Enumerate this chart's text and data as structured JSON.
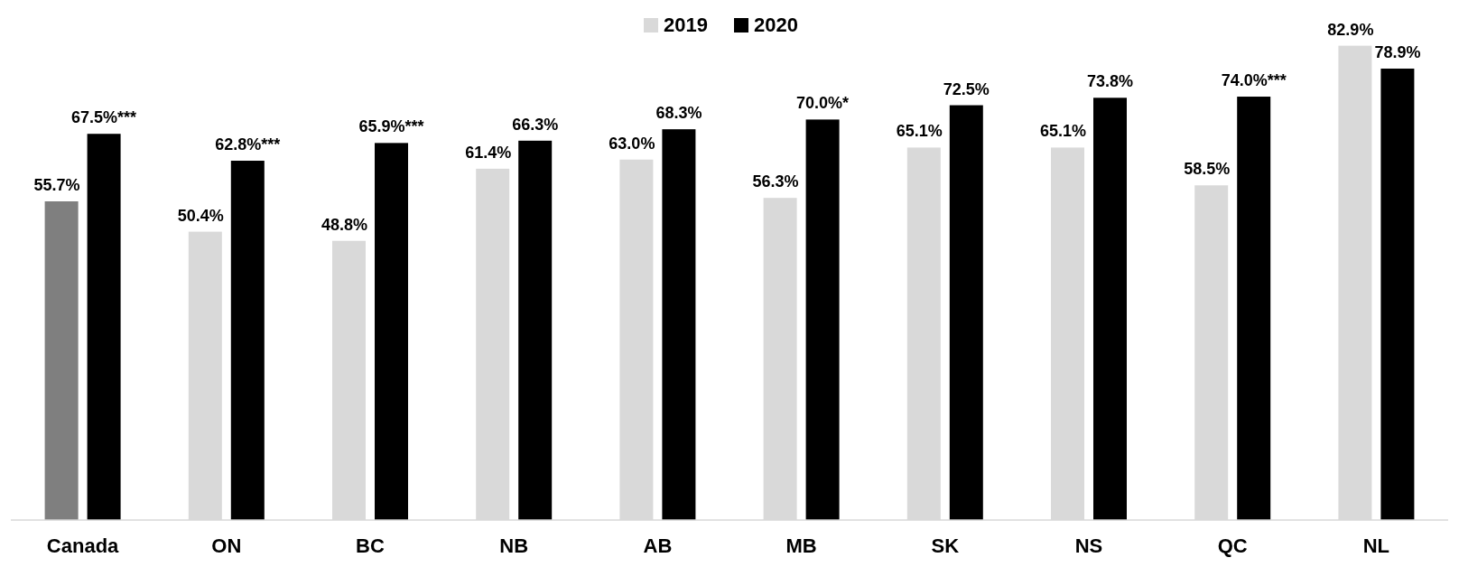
{
  "chart_data": {
    "type": "bar",
    "categories": [
      "Canada",
      "ON",
      "BC",
      "NB",
      "AB",
      "MB",
      "SK",
      "NS",
      "QC",
      "NL"
    ],
    "series": [
      {
        "name": "2019",
        "color": "#d9d9d9",
        "colors": [
          "#7f7f7f",
          "#d9d9d9",
          "#d9d9d9",
          "#d9d9d9",
          "#d9d9d9",
          "#d9d9d9",
          "#d9d9d9",
          "#d9d9d9",
          "#d9d9d9",
          "#d9d9d9"
        ],
        "values": [
          55.7,
          50.4,
          48.8,
          61.4,
          63.0,
          56.3,
          65.1,
          65.1,
          58.5,
          82.9
        ],
        "value_labels": [
          "55.7%",
          "50.4%",
          "48.8%",
          "61.4%",
          "63.0%",
          "56.3%",
          "65.1%",
          "65.1%",
          "58.5%",
          "82.9%"
        ]
      },
      {
        "name": "2020",
        "color": "#000000",
        "values": [
          67.5,
          62.8,
          65.9,
          66.3,
          68.3,
          70.0,
          72.5,
          73.8,
          74.0,
          78.9
        ],
        "value_labels": [
          "67.5%***",
          "62.8%***",
          "65.9%***",
          "66.3%",
          "68.3%",
          "70.0%*",
          "72.5%",
          "73.8%",
          "74.0%***",
          "78.9%"
        ]
      }
    ],
    "ylim": [
      0,
      83
    ],
    "tick_labels": "x",
    "legend": "top"
  }
}
